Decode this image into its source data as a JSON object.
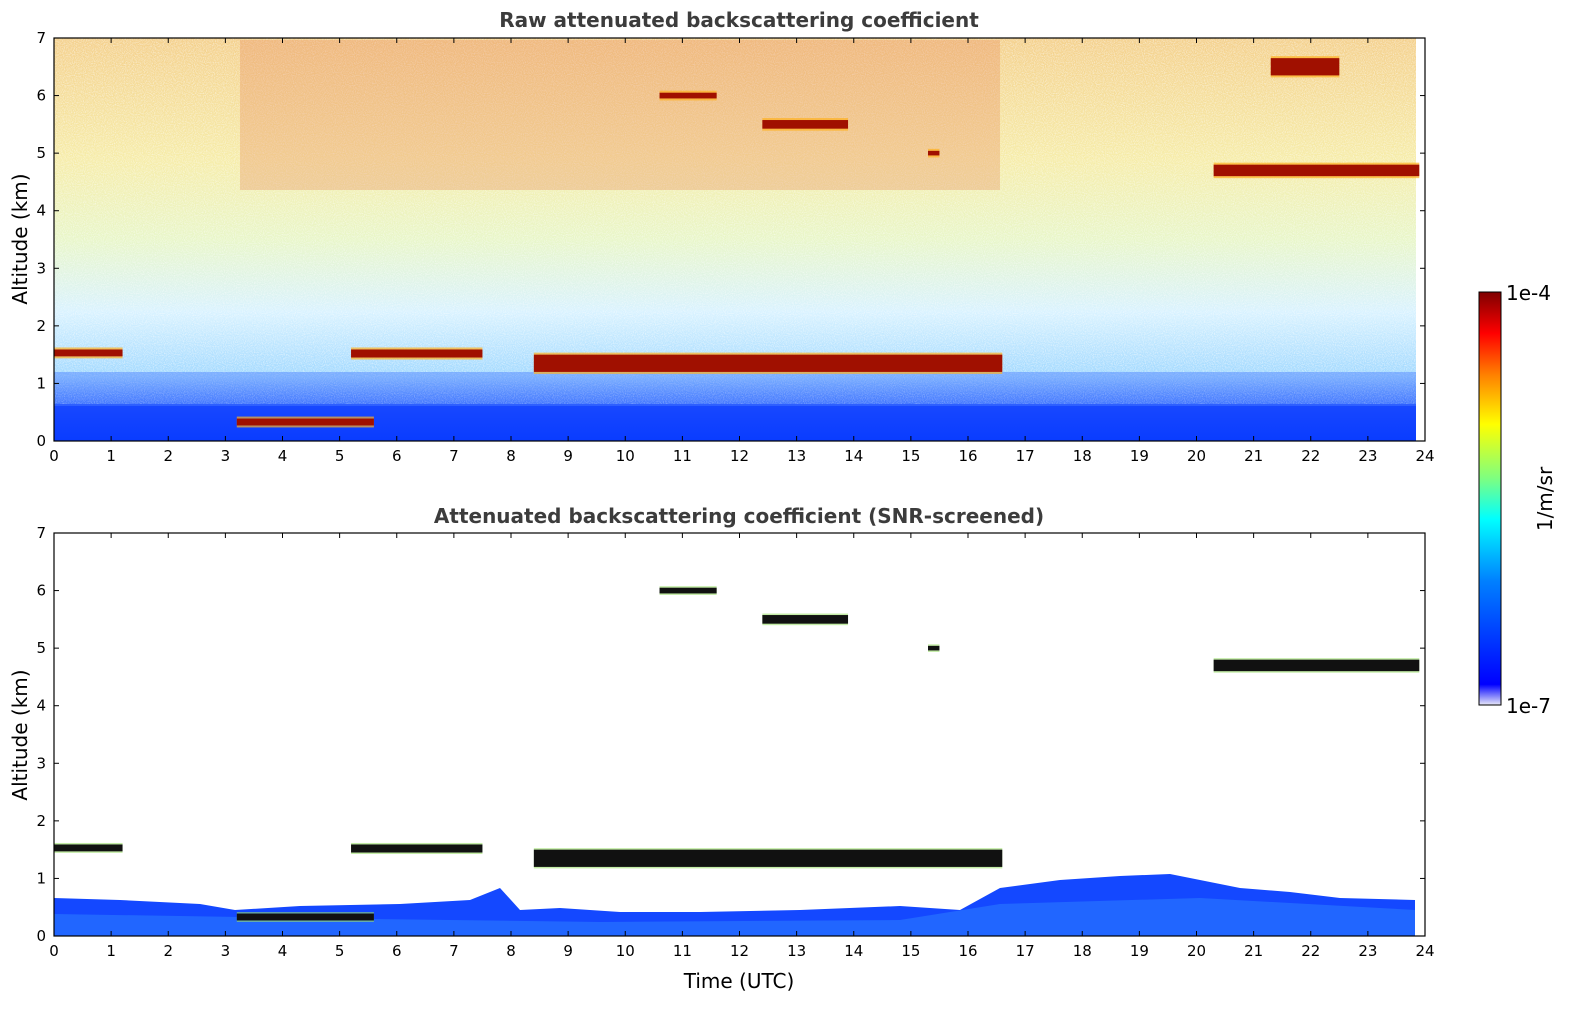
{
  "chart_data": [
    {
      "type": "heatmap",
      "title": "Raw attenuated backscattering coefficient",
      "xlabel": "",
      "ylabel": "Altitude (km)",
      "xlim": [
        0,
        24
      ],
      "ylim": [
        0,
        7
      ],
      "x_ticks": [
        "0",
        "1",
        "2",
        "3",
        "4",
        "5",
        "6",
        "7",
        "8",
        "9",
        "10",
        "11",
        "12",
        "13",
        "14",
        "15",
        "16",
        "17",
        "18",
        "19",
        "20",
        "21",
        "22",
        "23",
        "24"
      ],
      "y_ticks": [
        "0",
        "1",
        "2",
        "3",
        "4",
        "5",
        "6",
        "7"
      ],
      "layers": [
        {
          "x": [
            0.0,
            1.2
          ],
          "y": 1.53,
          "thickness": 0.12
        },
        {
          "x": [
            3.2,
            5.6
          ],
          "y": 0.33,
          "thickness": 0.12
        },
        {
          "x": [
            5.2,
            7.5
          ],
          "y": 1.52,
          "thickness": 0.14
        },
        {
          "x": [
            8.4,
            16.6
          ],
          "y": 1.35,
          "thickness": 0.3
        },
        {
          "x": [
            10.6,
            11.6
          ],
          "y": 6.0,
          "thickness": 0.1
        },
        {
          "x": [
            12.4,
            13.9
          ],
          "y": 5.5,
          "thickness": 0.15
        },
        {
          "x": [
            15.3,
            15.5
          ],
          "y": 5.0,
          "thickness": 0.08
        },
        {
          "x": [
            20.3,
            23.9
          ],
          "y": 4.7,
          "thickness": 0.2
        },
        {
          "x": [
            21.3,
            22.5
          ],
          "y": 6.5,
          "thickness": 0.3
        }
      ]
    },
    {
      "type": "heatmap",
      "title": "Attenuated backscattering coefficient (SNR-screened)",
      "xlabel": "Time (UTC)",
      "ylabel": "Altitude (km)",
      "xlim": [
        0,
        24
      ],
      "ylim": [
        0,
        7
      ],
      "x_ticks": [
        "0",
        "1",
        "2",
        "3",
        "4",
        "5",
        "6",
        "7",
        "8",
        "9",
        "10",
        "11",
        "12",
        "13",
        "14",
        "15",
        "16",
        "17",
        "18",
        "19",
        "20",
        "21",
        "22",
        "23",
        "24"
      ],
      "y_ticks": [
        "0",
        "1",
        "2",
        "3",
        "4",
        "5",
        "6",
        "7"
      ],
      "layers": [
        {
          "x": [
            0.0,
            1.2
          ],
          "y": 1.53,
          "thickness": 0.12
        },
        {
          "x": [
            3.2,
            5.6
          ],
          "y": 0.33,
          "thickness": 0.12
        },
        {
          "x": [
            5.2,
            7.5
          ],
          "y": 1.52,
          "thickness": 0.14
        },
        {
          "x": [
            8.4,
            16.6
          ],
          "y": 1.35,
          "thickness": 0.3
        },
        {
          "x": [
            10.6,
            11.6
          ],
          "y": 6.0,
          "thickness": 0.1
        },
        {
          "x": [
            12.4,
            13.9
          ],
          "y": 5.5,
          "thickness": 0.15
        },
        {
          "x": [
            15.3,
            15.5
          ],
          "y": 5.0,
          "thickness": 0.08
        },
        {
          "x": [
            20.3,
            23.9
          ],
          "y": 4.7,
          "thickness": 0.2
        }
      ]
    }
  ],
  "colorbar": {
    "label": "1/m/sr",
    "max_label": "1e-4",
    "min_label": "1e-7",
    "scale": "log",
    "colormap": "jet",
    "colors": [
      "#e6e6f5",
      "#0000ff",
      "#00a0ff",
      "#00ffff",
      "#7fff7f",
      "#ffff00",
      "#ff8000",
      "#ff0000",
      "#7f0000"
    ]
  }
}
